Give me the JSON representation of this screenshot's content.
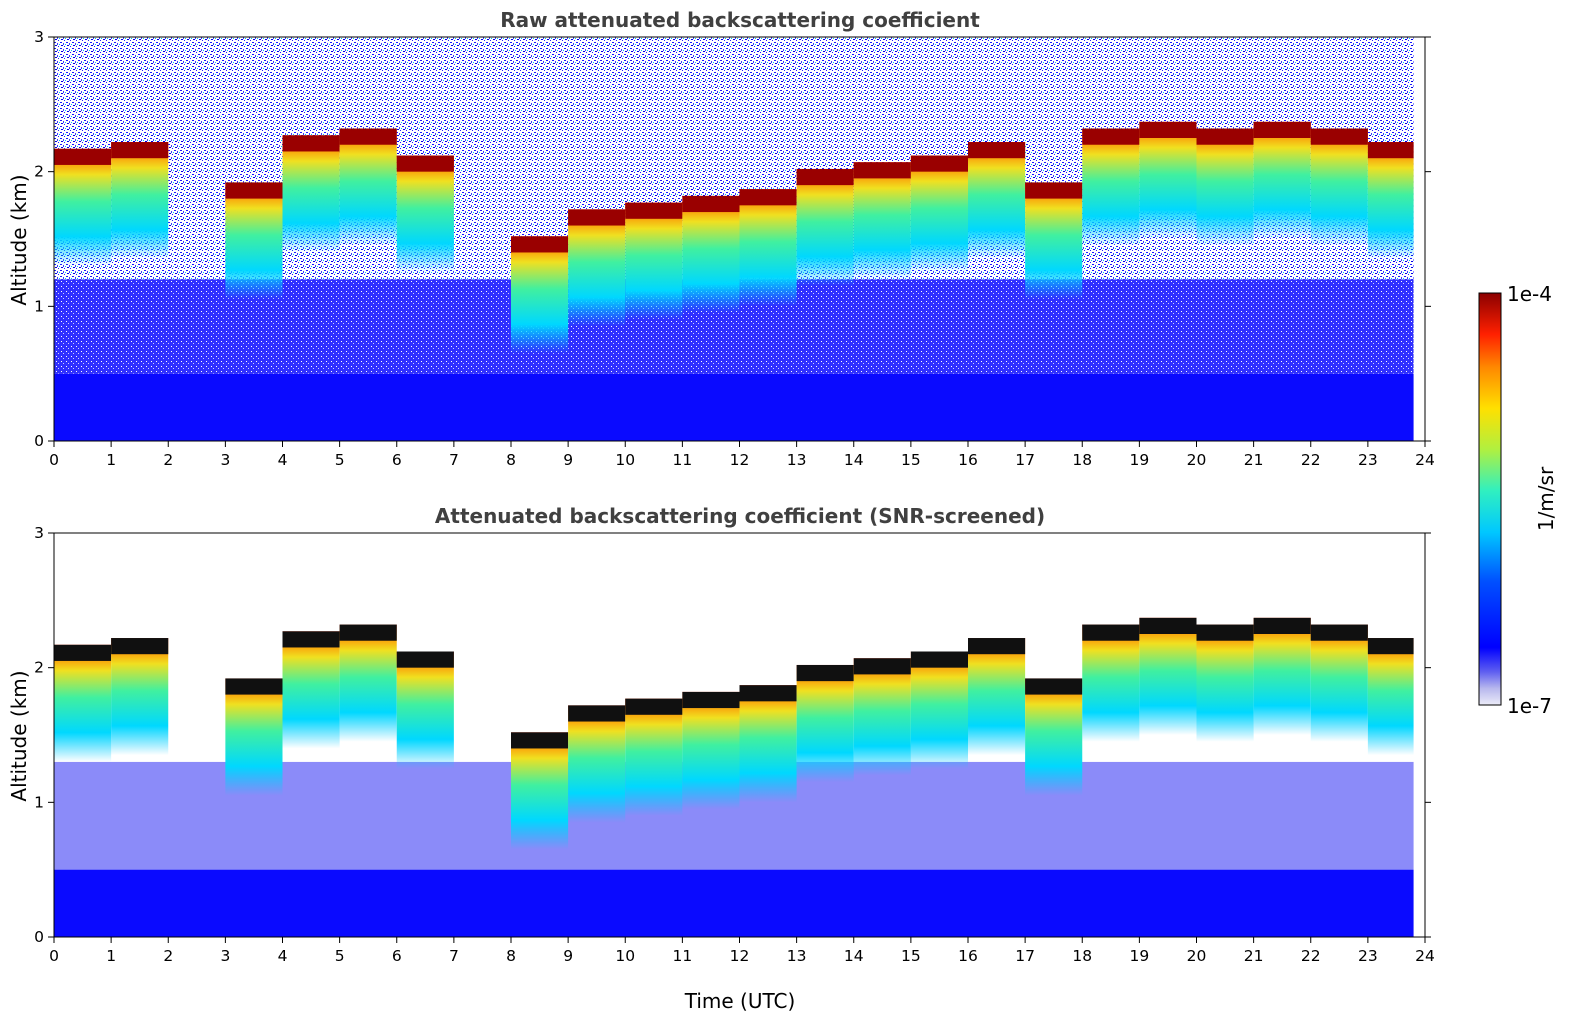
{
  "chart_data": [
    {
      "type": "heatmap",
      "title": "Raw attenuated backscattering coefficient",
      "xlabel": "",
      "ylabel": "Altitude (km)",
      "xlim": [
        0,
        24
      ],
      "ylim": [
        0,
        3
      ],
      "x_ticks": [
        "0",
        "1",
        "2",
        "3",
        "4",
        "5",
        "6",
        "7",
        "8",
        "9",
        "10",
        "11",
        "12",
        "13",
        "14",
        "15",
        "16",
        "17",
        "18",
        "19",
        "20",
        "21",
        "22",
        "23",
        "24"
      ],
      "y_ticks": [
        "0",
        "1",
        "2",
        "3"
      ],
      "screened": false,
      "cloud_base_profile": [
        {
          "t": 0.0,
          "base_km": 2.05,
          "cloud": true
        },
        {
          "t": 1.0,
          "base_km": 2.1,
          "cloud": true
        },
        {
          "t": 2.0,
          "base_km": null,
          "cloud": false
        },
        {
          "t": 3.0,
          "base_km": 1.8,
          "cloud": true
        },
        {
          "t": 4.0,
          "base_km": 2.15,
          "cloud": true
        },
        {
          "t": 5.0,
          "base_km": 2.2,
          "cloud": true
        },
        {
          "t": 6.0,
          "base_km": 2.0,
          "cloud": true
        },
        {
          "t": 7.0,
          "base_km": null,
          "cloud": false
        },
        {
          "t": 8.0,
          "base_km": 1.4,
          "cloud": true
        },
        {
          "t": 9.0,
          "base_km": 1.6,
          "cloud": true
        },
        {
          "t": 10.0,
          "base_km": 1.65,
          "cloud": true
        },
        {
          "t": 11.0,
          "base_km": 1.7,
          "cloud": true
        },
        {
          "t": 12.0,
          "base_km": 1.75,
          "cloud": true
        },
        {
          "t": 13.0,
          "base_km": 1.9,
          "cloud": true
        },
        {
          "t": 14.0,
          "base_km": 1.95,
          "cloud": true
        },
        {
          "t": 15.0,
          "base_km": 2.0,
          "cloud": true
        },
        {
          "t": 16.0,
          "base_km": 2.1,
          "cloud": true
        },
        {
          "t": 17.0,
          "base_km": 1.8,
          "cloud": true
        },
        {
          "t": 18.0,
          "base_km": 2.2,
          "cloud": true
        },
        {
          "t": 19.0,
          "base_km": 2.25,
          "cloud": true
        },
        {
          "t": 20.0,
          "base_km": 2.2,
          "cloud": true
        },
        {
          "t": 21.0,
          "base_km": 2.25,
          "cloud": true
        },
        {
          "t": 22.0,
          "base_km": 2.2,
          "cloud": true
        },
        {
          "t": 23.0,
          "base_km": 2.1,
          "cloud": true
        },
        {
          "t": 23.8,
          "base_km": 2.05,
          "cloud": true
        }
      ]
    },
    {
      "type": "heatmap",
      "title": "Attenuated backscattering coefficient (SNR-screened)",
      "xlabel": "Time (UTC)",
      "ylabel": "Altitude (km)",
      "xlim": [
        0,
        24
      ],
      "ylim": [
        0,
        3
      ],
      "x_ticks": [
        "0",
        "1",
        "2",
        "3",
        "4",
        "5",
        "6",
        "7",
        "8",
        "9",
        "10",
        "11",
        "12",
        "13",
        "14",
        "15",
        "16",
        "17",
        "18",
        "19",
        "20",
        "21",
        "22",
        "23",
        "24"
      ],
      "y_ticks": [
        "0",
        "1",
        "2",
        "3"
      ],
      "screened": true
    }
  ],
  "colorbar": {
    "label": "1/m/sr",
    "min_label": "1e-7",
    "max_label": "1e-4",
    "scale": "log",
    "colormap": "jet"
  }
}
